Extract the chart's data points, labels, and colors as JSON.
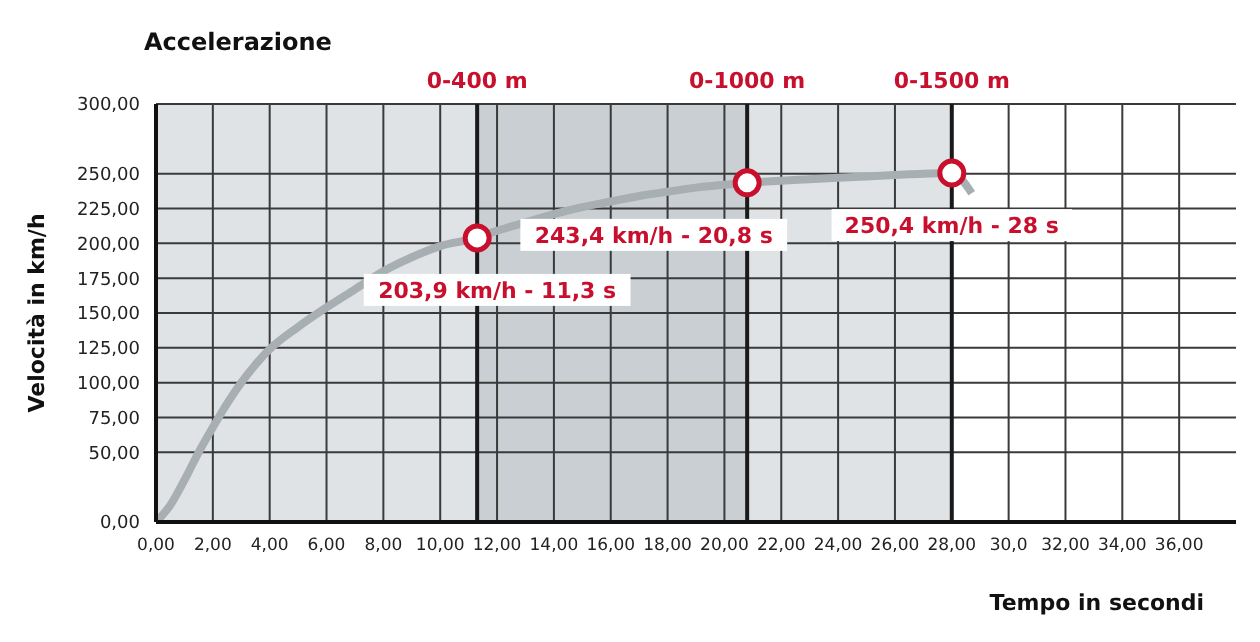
{
  "chart_data": {
    "type": "line",
    "title": "Accelerazione",
    "xlabel": "Tempo in secondi",
    "ylabel": "Velocità in km/h",
    "series": [
      {
        "color": "#a7afb3",
        "x": [
          0,
          0.5,
          1,
          1.5,
          2,
          2.5,
          3,
          3.5,
          4,
          5,
          6,
          7,
          8,
          9,
          10,
          11.3,
          12,
          13,
          14,
          15,
          16,
          17,
          18,
          19,
          20,
          20.8,
          22,
          23,
          24,
          25,
          26,
          27,
          28,
          28.7
        ],
        "values": [
          0,
          12,
          30,
          50,
          68,
          85,
          100,
          113,
          124,
          140,
          154,
          167,
          180,
          190,
          198,
          203.9,
          209,
          215,
          221,
          226,
          230,
          234,
          237,
          240,
          242,
          243.4,
          245,
          246,
          247,
          248,
          249,
          250,
          250.4,
          236
        ]
      },
      {
        "type": "scatter",
        "color": "#c8102e",
        "marker": "circle",
        "x": [
          11.3,
          20.8,
          28
        ],
        "values": [
          203.9,
          243.4,
          250.4
        ]
      }
    ],
    "xlim": [
      0,
      38
    ],
    "xticks": [
      {
        "value": 0,
        "label": "0,00"
      },
      {
        "value": 2,
        "label": "2,00"
      },
      {
        "value": 4,
        "label": "4,00"
      },
      {
        "value": 6,
        "label": "6,00"
      },
      {
        "value": 8,
        "label": "8,00"
      },
      {
        "value": 10,
        "label": "10,00"
      },
      {
        "value": 12,
        "label": "12,00"
      },
      {
        "value": 14,
        "label": "14,00"
      },
      {
        "value": 16,
        "label": "16,00"
      },
      {
        "value": 18,
        "label": "18,00"
      },
      {
        "value": 20,
        "label": "20,00"
      },
      {
        "value": 22,
        "label": "22,00"
      },
      {
        "value": 24,
        "label": "24,00"
      },
      {
        "value": 26,
        "label": "26,00"
      },
      {
        "value": 28,
        "label": "28,00"
      },
      {
        "value": 30,
        "label": "30,0"
      },
      {
        "value": 32,
        "label": "32,00"
      },
      {
        "value": 34,
        "label": "34,00"
      },
      {
        "value": 36,
        "label": "36,00"
      }
    ],
    "ylim": [
      0,
      300
    ],
    "yticks": [
      {
        "value": 0,
        "label": "0,00"
      },
      {
        "value": 50,
        "label": "50,00"
      },
      {
        "value": 75,
        "label": "75,00"
      },
      {
        "value": 100,
        "label": "100,00"
      },
      {
        "value": 125,
        "label": "125,00"
      },
      {
        "value": 150,
        "label": "150,00"
      },
      {
        "value": 175,
        "label": "175,00"
      },
      {
        "value": 200,
        "label": "200,00"
      },
      {
        "value": 225,
        "label": "225,00"
      },
      {
        "value": 250,
        "label": "250,00"
      },
      {
        "value": 300,
        "label": "300,00"
      }
    ],
    "grid": true,
    "ref_lines": [
      {
        "axis": "x",
        "value": 11.3,
        "label": "0-400 m",
        "color": "#1a1a1a"
      },
      {
        "axis": "x",
        "value": 20.8,
        "label": "0-1000 m",
        "color": "#1a1a1a"
      },
      {
        "axis": "x",
        "value": 28,
        "label": "0-1500 m",
        "color": "#1a1a1a"
      }
    ],
    "bands": [
      {
        "axis": "x",
        "from": 0,
        "to": 11.3,
        "color": "#dfe3e6"
      },
      {
        "axis": "x",
        "from": 11.3,
        "to": 20.8,
        "color": "#c9cfd3"
      },
      {
        "axis": "x",
        "from": 20.8,
        "to": 28,
        "color": "#dfe3e6"
      }
    ],
    "annotations": [
      {
        "text": "203,9 km/h - 11,3 s",
        "x": 11.3,
        "y": 203.9
      },
      {
        "text": "243,4 km/h - 20,8 s",
        "x": 20.8,
        "y": 243.4
      },
      {
        "text": "250,4 km/h - 28 s",
        "x": 28,
        "y": 250.4
      }
    ]
  }
}
